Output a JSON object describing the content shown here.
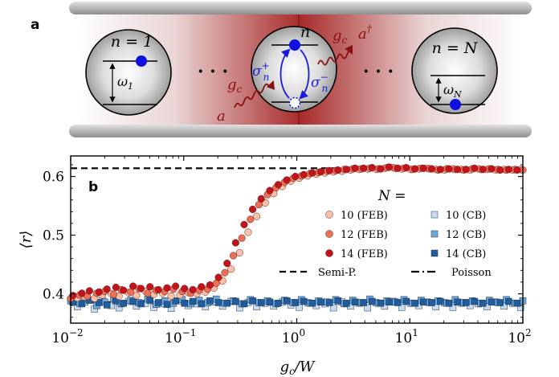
{
  "panel_a": {
    "label": "a",
    "atoms": [
      {
        "n_label": "n = 1",
        "omega_label": "ω",
        "omega_sub": "1"
      },
      {
        "n_label": "n"
      },
      {
        "n_label": "n = N",
        "omega_label": "ω",
        "omega_sub": "N"
      }
    ],
    "dots": "· · ·",
    "sigma_plus": "σ",
    "sigma_plus_sup": "+",
    "sigma_plus_sub": "n",
    "sigma_minus": "σ",
    "sigma_minus_sup": "−",
    "sigma_minus_sub": "n",
    "gc_top": "g",
    "gc_top_sub": "c",
    "gc_bottom": "g",
    "gc_bottom_sub": "c",
    "a_dag": "a",
    "a_dag_sup": "†",
    "a_in": "a"
  },
  "chart_data": {
    "type": "scatter",
    "panel_label": "b",
    "xlabel": "g",
    "xlabel_sub": "c",
    "xlabel_rest": "/W",
    "ylabel": "⟨r⟩",
    "xscale": "log",
    "xlim": [
      0.01,
      100
    ],
    "ylim": [
      0.35,
      0.635
    ],
    "x_ticks": [
      {
        "value": 0.01,
        "base": "10",
        "exp": "−2"
      },
      {
        "value": 0.1,
        "base": "10",
        "exp": "−1"
      },
      {
        "value": 1,
        "base": "10",
        "exp": "0"
      },
      {
        "value": 10,
        "base": "10",
        "exp": "1"
      },
      {
        "value": 100,
        "base": "10",
        "exp": "2"
      }
    ],
    "y_ticks": [
      {
        "value": 0.4,
        "label": "0.4"
      },
      {
        "value": 0.5,
        "label": "0.5"
      },
      {
        "value": 0.6,
        "label": "0.6"
      }
    ],
    "reference_lines": [
      {
        "name": "Semi-P.",
        "y": 0.614,
        "style": "dashed"
      },
      {
        "name": "Poisson",
        "y": 0.386,
        "style": "dashdot"
      }
    ],
    "legend": {
      "title": "N =",
      "position": "right"
    },
    "x": [
      0.01,
      0.012,
      0.014,
      0.017,
      0.02,
      0.024,
      0.028,
      0.034,
      0.04,
      0.048,
      0.057,
      0.068,
      0.081,
      0.097,
      0.115,
      0.137,
      0.163,
      0.194,
      0.231,
      0.275,
      0.327,
      0.389,
      0.463,
      0.551,
      0.655,
      0.78,
      0.928,
      1.1,
      1.31,
      1.56,
      1.86,
      2.21,
      2.63,
      3.13,
      3.72,
      4.43,
      5.27,
      6.27,
      7.46,
      8.88,
      10.6,
      12.6,
      14.9,
      17.8,
      21.2,
      25.2,
      30.0,
      35.7,
      42.4,
      50.5,
      60.1,
      71.5,
      85.0,
      100
    ],
    "series": [
      {
        "name": "10 (FEB)",
        "color": "#f7c2a8",
        "marker": "circle",
        "values": [
          0.388,
          0.393,
          0.395,
          0.392,
          0.398,
          0.4,
          0.396,
          0.402,
          0.397,
          0.404,
          0.399,
          0.401,
          0.396,
          0.398,
          0.402,
          0.4,
          0.403,
          0.41,
          0.422,
          0.442,
          0.47,
          0.505,
          0.532,
          0.555,
          0.571,
          0.583,
          0.592,
          0.597,
          0.601,
          0.604,
          0.606,
          0.608,
          0.609,
          0.611,
          0.612,
          0.613,
          0.612,
          0.614,
          0.615,
          0.613,
          0.612,
          0.613,
          0.614,
          0.612,
          0.611,
          0.613,
          0.612,
          0.611,
          0.613,
          0.612,
          0.611,
          0.612,
          0.611,
          0.612
        ]
      },
      {
        "name": "12 (FEB)",
        "color": "#ec6f56",
        "marker": "circle",
        "values": [
          0.392,
          0.398,
          0.396,
          0.401,
          0.404,
          0.399,
          0.407,
          0.403,
          0.409,
          0.401,
          0.406,
          0.404,
          0.408,
          0.404,
          0.401,
          0.406,
          0.408,
          0.418,
          0.436,
          0.465,
          0.495,
          0.527,
          0.552,
          0.569,
          0.581,
          0.59,
          0.597,
          0.601,
          0.605,
          0.607,
          0.609,
          0.61,
          0.612,
          0.613,
          0.613,
          0.614,
          0.613,
          0.615,
          0.614,
          0.614,
          0.612,
          0.614,
          0.613,
          0.611,
          0.613,
          0.612,
          0.611,
          0.613,
          0.612,
          0.613,
          0.612,
          0.611,
          0.612,
          0.611
        ]
      },
      {
        "name": "14 (FEB)",
        "color": "#c1141c",
        "marker": "circle",
        "values": [
          0.397,
          0.401,
          0.405,
          0.403,
          0.408,
          0.411,
          0.406,
          0.413,
          0.409,
          0.412,
          0.407,
          0.41,
          0.413,
          0.409,
          0.407,
          0.412,
          0.415,
          0.428,
          0.452,
          0.487,
          0.518,
          0.544,
          0.562,
          0.576,
          0.586,
          0.594,
          0.6,
          0.603,
          0.606,
          0.608,
          0.61,
          0.611,
          0.612,
          0.614,
          0.614,
          0.615,
          0.613,
          0.616,
          0.614,
          0.615,
          0.613,
          0.614,
          0.613,
          0.612,
          0.613,
          0.612,
          0.612,
          0.614,
          0.612,
          0.613,
          0.611,
          0.612,
          0.611,
          0.612
        ]
      },
      {
        "name": "10 (CB)",
        "color": "#c9dcef",
        "marker": "square",
        "values": [
          0.382,
          0.378,
          0.386,
          0.374,
          0.388,
          0.38,
          0.376,
          0.387,
          0.379,
          0.384,
          0.377,
          0.383,
          0.375,
          0.388,
          0.38,
          0.383,
          0.378,
          0.386,
          0.379,
          0.387,
          0.376,
          0.385,
          0.378,
          0.384,
          0.379,
          0.386,
          0.381,
          0.377,
          0.385,
          0.38,
          0.383,
          0.376,
          0.386,
          0.379,
          0.384,
          0.376,
          0.385,
          0.379,
          0.387,
          0.377,
          0.384,
          0.38,
          0.386,
          0.378,
          0.385,
          0.377,
          0.384,
          0.38,
          0.383,
          0.378,
          0.386,
          0.379,
          0.384,
          0.377
        ]
      },
      {
        "name": "12 (CB)",
        "color": "#6fa6d6",
        "marker": "square",
        "values": [
          0.388,
          0.384,
          0.391,
          0.38,
          0.386,
          0.392,
          0.383,
          0.389,
          0.385,
          0.391,
          0.382,
          0.388,
          0.384,
          0.39,
          0.383,
          0.389,
          0.385,
          0.391,
          0.384,
          0.388,
          0.383,
          0.39,
          0.385,
          0.388,
          0.383,
          0.389,
          0.385,
          0.39,
          0.384,
          0.388,
          0.386,
          0.39,
          0.383,
          0.389,
          0.385,
          0.391,
          0.384,
          0.388,
          0.386,
          0.39,
          0.384,
          0.389,
          0.385,
          0.388,
          0.384,
          0.39,
          0.385,
          0.388,
          0.384,
          0.389,
          0.385,
          0.39,
          0.384,
          0.388
        ]
      },
      {
        "name": "14 (CB)",
        "color": "#1f5d9e",
        "marker": "square",
        "values": [
          0.386,
          0.383,
          0.389,
          0.385,
          0.381,
          0.388,
          0.384,
          0.387,
          0.383,
          0.389,
          0.385,
          0.382,
          0.388,
          0.384,
          0.387,
          0.383,
          0.388,
          0.385,
          0.384,
          0.387,
          0.383,
          0.388,
          0.385,
          0.386,
          0.384,
          0.388,
          0.385,
          0.387,
          0.384,
          0.386,
          0.385,
          0.388,
          0.384,
          0.386,
          0.385,
          0.387,
          0.384,
          0.386,
          0.385,
          0.387,
          0.384,
          0.386,
          0.385,
          0.387,
          0.384,
          0.386,
          0.385,
          0.387,
          0.384,
          0.386,
          0.385,
          0.387,
          0.384,
          0.386
        ]
      }
    ]
  }
}
